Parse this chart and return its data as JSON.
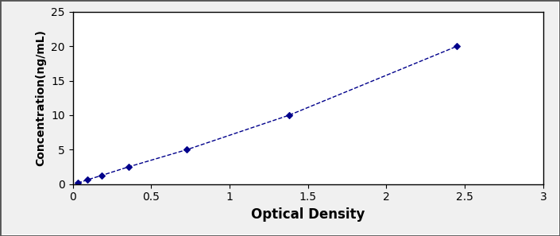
{
  "x_data": [
    0.032,
    0.094,
    0.183,
    0.356,
    0.728,
    1.38,
    2.45
  ],
  "y_data": [
    0.156,
    0.625,
    1.25,
    2.5,
    5.0,
    10.0,
    20.0
  ],
  "line_color": "#00008B",
  "marker": "D",
  "marker_size": 4,
  "marker_color": "#00008B",
  "line_style": "--",
  "line_width": 1.0,
  "xlabel": "Optical Density",
  "ylabel": "Concentration(ng/mL)",
  "xlim": [
    0,
    3
  ],
  "ylim": [
    0,
    25
  ],
  "xticks": [
    0,
    0.5,
    1,
    1.5,
    2,
    2.5,
    3
  ],
  "xtick_labels": [
    "0",
    "0.5",
    "1",
    "1.5",
    "2",
    "2.5",
    "3"
  ],
  "yticks": [
    0,
    5,
    10,
    15,
    20,
    25
  ],
  "ytick_labels": [
    "0",
    "5",
    "10",
    "15",
    "20",
    "25"
  ],
  "xlabel_fontsize": 12,
  "ylabel_fontsize": 10,
  "tick_fontsize": 10,
  "figure_bg": "#f0f0f0",
  "axes_bg": "#ffffff",
  "spine_color": "#000000",
  "outer_border": true
}
